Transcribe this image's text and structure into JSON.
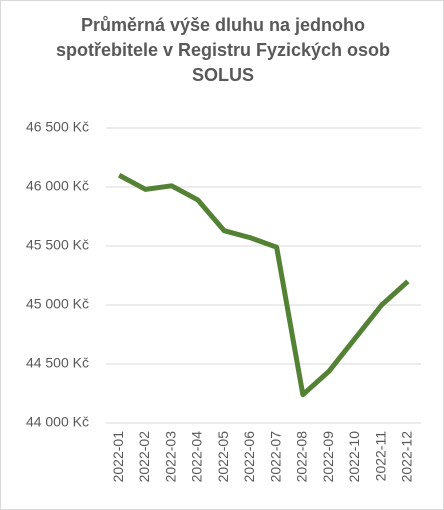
{
  "chart_data": {
    "type": "line",
    "title": "Průměrná výše dluhu na jednoho spotřebitele v Registru Fyzických osob SOLUS",
    "categories": [
      "2022-01",
      "2022-02",
      "2022-03",
      "2022-04",
      "2022-05",
      "2022-06",
      "2022-07",
      "2022-08",
      "2022-09",
      "2022-10",
      "2022-11",
      "2022-12"
    ],
    "series": [
      {
        "name": "Průměrná výše dluhu",
        "color": "#548235",
        "values": [
          46100,
          45980,
          46010,
          45890,
          45630,
          45570,
          45490,
          44240,
          44440,
          44720,
          45000,
          45200
        ]
      }
    ],
    "ylim": [
      44000,
      46500
    ],
    "yticks": [
      {
        "value": 44000,
        "label": "44 000 Kč"
      },
      {
        "value": 44500,
        "label": "44 500 Kč"
      },
      {
        "value": 45000,
        "label": "45 000 Kč"
      },
      {
        "value": 45500,
        "label": "45 500 Kč"
      },
      {
        "value": 46000,
        "label": "46 000 Kč"
      },
      {
        "value": 46500,
        "label": "46 500 Kč"
      }
    ],
    "grid": true
  }
}
